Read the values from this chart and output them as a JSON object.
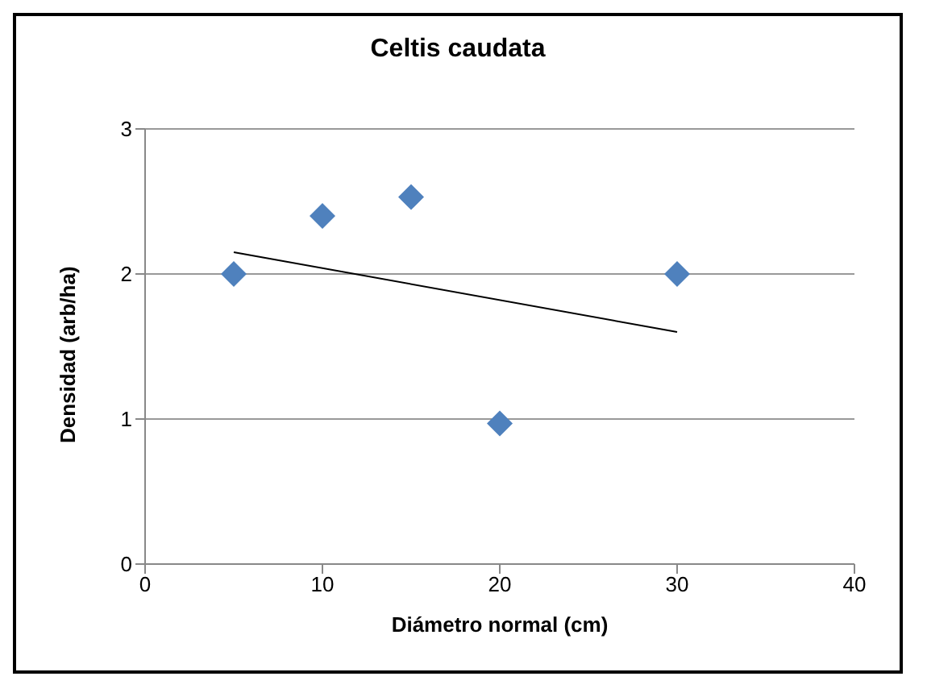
{
  "chart_data": {
    "type": "scatter",
    "title": "Celtis caudata",
    "xlabel": "Diámetro normal (cm)",
    "ylabel": "Densidad (arb/ha)",
    "series": [
      {
        "color": "#4f81bd",
        "marker": "diamond",
        "x": [
          5,
          10,
          15,
          20,
          30
        ],
        "values": [
          2.0,
          2.4,
          2.53,
          0.97,
          2.0
        ]
      },
      {
        "type": "line",
        "color": "#000000",
        "marker": "none",
        "x": [
          5,
          30
        ],
        "values": [
          2.15,
          1.6
        ]
      }
    ],
    "xlim": [
      0,
      40
    ],
    "xticks": [
      0,
      10,
      20,
      30,
      40
    ],
    "ylim": [
      0,
      3
    ],
    "yticks": [
      0,
      1,
      2,
      3
    ],
    "grid": "y",
    "legend": false
  }
}
